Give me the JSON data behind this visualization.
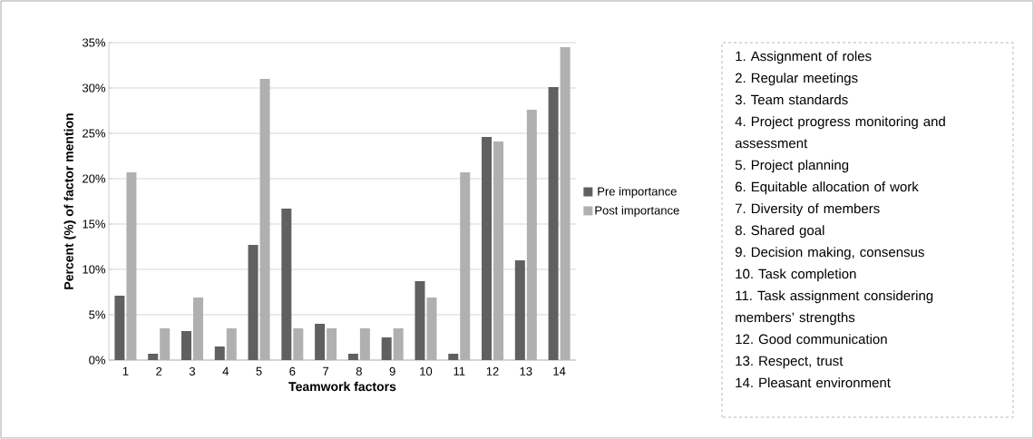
{
  "chart_data": {
    "type": "bar",
    "xlabel": "Teamwork factors",
    "ylabel": "Percent (%) of factor mention",
    "categories": [
      "1",
      "2",
      "3",
      "4",
      "5",
      "6",
      "7",
      "8",
      "9",
      "10",
      "11",
      "12",
      "13",
      "14"
    ],
    "series": [
      {
        "name": "Pre importance",
        "color": "#606060",
        "values": [
          7.1,
          0.7,
          3.2,
          1.5,
          12.7,
          16.7,
          4.0,
          0.7,
          2.5,
          8.7,
          0.7,
          24.6,
          11.0,
          30.1
        ]
      },
      {
        "name": "Post importance",
        "color": "#b0b0b0",
        "values": [
          20.7,
          3.5,
          6.9,
          3.5,
          31.0,
          3.5,
          3.5,
          3.5,
          3.5,
          6.9,
          20.7,
          24.1,
          27.6,
          34.5
        ]
      }
    ],
    "ylim": [
      0,
      35
    ],
    "yticks": [
      {
        "value": 0,
        "label": "0%"
      },
      {
        "value": 5,
        "label": "5%"
      },
      {
        "value": 10,
        "label": "10%"
      },
      {
        "value": 15,
        "label": "15%"
      },
      {
        "value": 20,
        "label": "20%"
      },
      {
        "value": 25,
        "label": "25%"
      },
      {
        "value": 30,
        "label": "30%"
      },
      {
        "value": 35,
        "label": "35%"
      }
    ],
    "grid": "y",
    "legend": "right",
    "annotations": [
      "1. Assignment of roles",
      "2. Regular meetings",
      "3. Team standards",
      "4. Project progress monitoring and assessment",
      "5. Project planning",
      "6. Equitable allocation of work",
      "7. Diversity of members",
      "8. Shared goal",
      "9. Decision making, consensus",
      "10. Task completion",
      "11. Task assignment considering members’ strengths",
      "12. Good communication",
      "13. Respect, trust",
      "14. Pleasant environment"
    ]
  }
}
